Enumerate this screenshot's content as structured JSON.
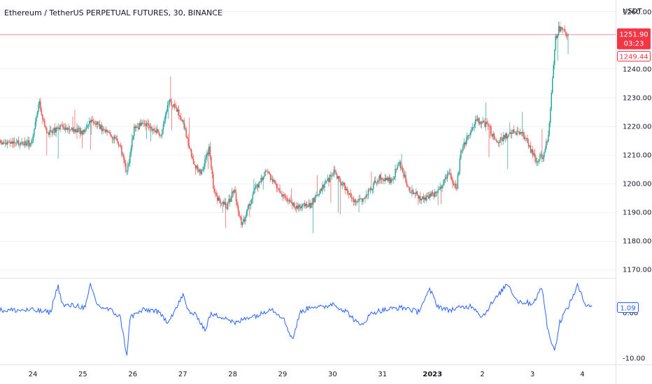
{
  "chart_title": "Ethereum / TetherUS PERPETUAL FUTURES, 30, BINANCE",
  "currency": "USDT",
  "colors": {
    "up": "#26a69a",
    "down": "#ef5350",
    "osc": "#2962ff",
    "grid": "#f0f3fa",
    "axis_border": "#e0e3eb",
    "price_tag": "#f23645"
  },
  "chart_data": [
    {
      "type": "candlestick",
      "title": "Ethereum / TetherUS PERPETUAL FUTURES, 30, BINANCE",
      "ylim": [
        1167,
        1264
      ],
      "y_ticks": [
        1170,
        1180,
        1190,
        1200,
        1210,
        1220,
        1230,
        1240,
        1260
      ],
      "y_tick_labels": [
        "1170.00",
        "1180.00",
        "1190.00",
        "1200.00",
        "1210.00",
        "1220.00",
        "1230.00",
        "1240.00",
        "1260.00"
      ],
      "x_labels": [
        "24",
        "25",
        "26",
        "27",
        "28",
        "29",
        "30",
        "31",
        "2023",
        "2",
        "3",
        "4"
      ],
      "bold_x_labels": [
        "2023"
      ],
      "close_path": [
        {
          "x": 0.0,
          "y": 1214
        },
        {
          "x": 0.15,
          "y": 1228
        },
        {
          "x": 0.3,
          "y": 1217
        },
        {
          "x": 0.6,
          "y": 1220
        },
        {
          "x": 1.0,
          "y": 1218
        },
        {
          "x": 1.2,
          "y": 1222
        },
        {
          "x": 1.55,
          "y": 1217
        },
        {
          "x": 1.75,
          "y": 1214
        },
        {
          "x": 1.9,
          "y": 1203
        },
        {
          "x": 2.05,
          "y": 1219
        },
        {
          "x": 2.25,
          "y": 1221
        },
        {
          "x": 2.6,
          "y": 1217
        },
        {
          "x": 2.75,
          "y": 1229
        },
        {
          "x": 3.0,
          "y": 1223
        },
        {
          "x": 3.25,
          "y": 1206
        },
        {
          "x": 3.4,
          "y": 1204
        },
        {
          "x": 3.55,
          "y": 1212
        },
        {
          "x": 3.65,
          "y": 1196
        },
        {
          "x": 3.9,
          "y": 1192
        },
        {
          "x": 4.05,
          "y": 1198
        },
        {
          "x": 4.2,
          "y": 1185
        },
        {
          "x": 4.45,
          "y": 1197
        },
        {
          "x": 4.7,
          "y": 1204
        },
        {
          "x": 5.0,
          "y": 1196
        },
        {
          "x": 5.3,
          "y": 1192
        },
        {
          "x": 5.55,
          "y": 1192
        },
        {
          "x": 5.8,
          "y": 1198
        },
        {
          "x": 6.05,
          "y": 1204
        },
        {
          "x": 6.25,
          "y": 1199
        },
        {
          "x": 6.5,
          "y": 1193
        },
        {
          "x": 6.7,
          "y": 1196
        },
        {
          "x": 6.95,
          "y": 1202
        },
        {
          "x": 7.2,
          "y": 1201
        },
        {
          "x": 7.35,
          "y": 1207
        },
        {
          "x": 7.55,
          "y": 1198
        },
        {
          "x": 7.85,
          "y": 1194
        },
        {
          "x": 8.1,
          "y": 1197
        },
        {
          "x": 8.35,
          "y": 1203
        },
        {
          "x": 8.5,
          "y": 1198
        },
        {
          "x": 8.6,
          "y": 1212
        },
        {
          "x": 8.9,
          "y": 1222
        },
        {
          "x": 9.15,
          "y": 1220
        },
        {
          "x": 9.3,
          "y": 1214
        },
        {
          "x": 9.6,
          "y": 1218
        },
        {
          "x": 9.85,
          "y": 1217
        },
        {
          "x": 10.0,
          "y": 1211
        },
        {
          "x": 10.1,
          "y": 1208
        },
        {
          "x": 10.25,
          "y": 1210
        },
        {
          "x": 10.35,
          "y": 1218
        },
        {
          "x": 10.48,
          "y": 1250
        },
        {
          "x": 10.55,
          "y": 1254
        },
        {
          "x": 10.72,
          "y": 1251.9
        }
      ],
      "last_price": 1251.9,
      "last_price_label": "1251.90",
      "countdown": "03:23",
      "secondary_price": 1249.44,
      "secondary_price_label": "1249.44"
    },
    {
      "type": "line",
      "title": "",
      "ylim": [
        -11.5,
        7.5
      ],
      "y_tick_labels": [
        "0.00",
        "-10.00"
      ],
      "last_value": 1.09,
      "last_value_label": "1.09",
      "path": [
        {
          "x": 0.0,
          "y": 0.5
        },
        {
          "x": 0.35,
          "y": 0.0
        },
        {
          "x": 0.5,
          "y": 6.0
        },
        {
          "x": 0.6,
          "y": 1.5
        },
        {
          "x": 0.9,
          "y": 1.5
        },
        {
          "x": 1.05,
          "y": 1.0
        },
        {
          "x": 1.15,
          "y": 6.0
        },
        {
          "x": 1.3,
          "y": 1.5
        },
        {
          "x": 1.55,
          "y": 0.5
        },
        {
          "x": 1.75,
          "y": -1.0
        },
        {
          "x": 1.88,
          "y": -9.5
        },
        {
          "x": 1.95,
          "y": -1.0
        },
        {
          "x": 2.2,
          "y": 0.5
        },
        {
          "x": 2.45,
          "y": 0.5
        },
        {
          "x": 2.7,
          "y": -2.0
        },
        {
          "x": 2.9,
          "y": 1.5
        },
        {
          "x": 3.0,
          "y": 4.0
        },
        {
          "x": 3.1,
          "y": 0.5
        },
        {
          "x": 3.3,
          "y": -1.0
        },
        {
          "x": 3.45,
          "y": -4.0
        },
        {
          "x": 3.55,
          "y": -0.5
        },
        {
          "x": 3.85,
          "y": -1.0
        },
        {
          "x": 4.05,
          "y": -2.5
        },
        {
          "x": 4.3,
          "y": -1.0
        },
        {
          "x": 4.55,
          "y": -0.5
        },
        {
          "x": 4.75,
          "y": 1.0
        },
        {
          "x": 5.0,
          "y": -1.0
        },
        {
          "x": 5.2,
          "y": -6.0
        },
        {
          "x": 5.35,
          "y": 0.0
        },
        {
          "x": 5.6,
          "y": 1.5
        },
        {
          "x": 5.8,
          "y": 1.0
        },
        {
          "x": 6.0,
          "y": 2.0
        },
        {
          "x": 6.3,
          "y": 0.0
        },
        {
          "x": 6.55,
          "y": -3.0
        },
        {
          "x": 6.8,
          "y": 0.0
        },
        {
          "x": 7.0,
          "y": 0.5
        },
        {
          "x": 7.3,
          "y": 1.0
        },
        {
          "x": 7.5,
          "y": 1.0
        },
        {
          "x": 7.7,
          "y": 0.0
        },
        {
          "x": 7.95,
          "y": 5.0
        },
        {
          "x": 8.1,
          "y": 1.5
        },
        {
          "x": 8.3,
          "y": 0.5
        },
        {
          "x": 8.55,
          "y": 1.0
        },
        {
          "x": 8.8,
          "y": 1.5
        },
        {
          "x": 9.0,
          "y": -1.0
        },
        {
          "x": 9.15,
          "y": 1.5
        },
        {
          "x": 9.3,
          "y": 3.5
        },
        {
          "x": 9.5,
          "y": 6.5
        },
        {
          "x": 9.7,
          "y": 2.5
        },
        {
          "x": 10.0,
          "y": 2.0
        },
        {
          "x": 10.2,
          "y": 5.5
        },
        {
          "x": 10.3,
          "y": -3.5
        },
        {
          "x": 10.45,
          "y": -8.5
        },
        {
          "x": 10.55,
          "y": -2.0
        },
        {
          "x": 10.75,
          "y": 2.0
        },
        {
          "x": 10.9,
          "y": 6.0
        },
        {
          "x": 11.05,
          "y": 2.0
        },
        {
          "x": 11.2,
          "y": 1.5
        }
      ]
    }
  ]
}
